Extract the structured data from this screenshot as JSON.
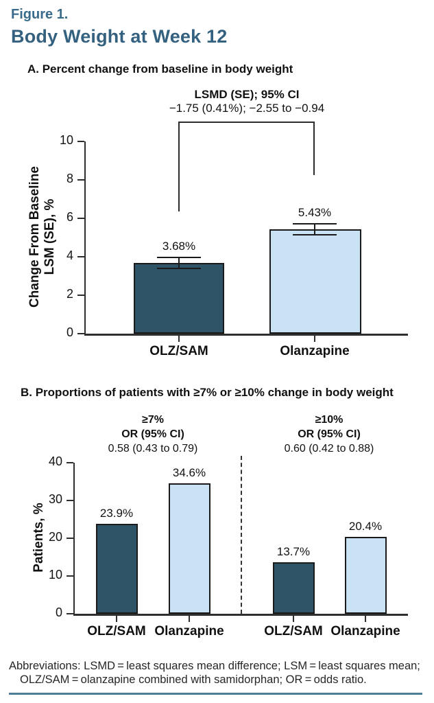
{
  "figure": {
    "label": "Figure 1.",
    "title": "Body Weight at Week 12"
  },
  "colors": {
    "dark_bar": "#2F5468",
    "light_bar": "#C9E2F4",
    "accent": "#3A6B8A",
    "accent_dark": "#33617F",
    "rule": "#4D7D99"
  },
  "panel_a": {
    "heading": "A. Percent change from baseline in body weight",
    "annotation_title": "LSMD (SE); 95% CI",
    "annotation_value": "−1.75 (0.41%); −2.55 to −0.94",
    "y_axis_label_line1": "Change From Baseline",
    "y_axis_label_line2": "LSM (SE), %",
    "y_ticks": [
      "10",
      "8",
      "6",
      "4",
      "2",
      "0"
    ],
    "bars": [
      {
        "label": "OLZ/SAM",
        "value": 3.68,
        "se": 0.32,
        "value_label": "3.68%"
      },
      {
        "label": "Olanzapine",
        "value": 5.43,
        "se": 0.32,
        "value_label": "5.43%"
      }
    ]
  },
  "panel_b": {
    "heading": "B. Proportions of patients with ≥7% or ≥10% change in body weight",
    "y_axis_label": "Patients, %",
    "y_ticks": [
      "40",
      "30",
      "20",
      "10",
      "0"
    ],
    "groups": [
      {
        "threshold": "≥7%",
        "or_label": "OR (95% CI)",
        "or_value": "0.58 (0.43 to 0.79)",
        "bars": [
          {
            "label": "OLZ/SAM",
            "value": 23.9,
            "se": 0,
            "value_label": "23.9%"
          },
          {
            "label": "Olanzapine",
            "value": 34.6,
            "se": 0,
            "value_label": "34.6%"
          }
        ]
      },
      {
        "threshold": "≥10%",
        "or_label": "OR (95% CI)",
        "or_value": "0.60 (0.42 to 0.88)",
        "bars": [
          {
            "label": "OLZ/SAM",
            "value": 13.7,
            "se": 0,
            "value_label": "13.7%"
          },
          {
            "label": "Olanzapine",
            "value": 20.4,
            "se": 0,
            "value_label": "20.4%"
          }
        ]
      }
    ]
  },
  "footer": {
    "line1": "Abbreviations: LSMD = least squares mean difference; LSM = least squares mean;",
    "line2": "OLZ/SAM = olanzapine combined with samidorphan; OR = odds ratio."
  },
  "chart_data": [
    {
      "type": "bar",
      "title": "A. Percent change from baseline in body weight",
      "categories": [
        "OLZ/SAM",
        "Olanzapine"
      ],
      "values": [
        3.68,
        5.43
      ],
      "error_se": [
        0.32,
        0.32
      ],
      "data_labels": [
        "3.68%",
        "5.43%"
      ],
      "ylabel": "Change From Baseline LSM (SE), %",
      "ylim": [
        0,
        10
      ],
      "yticks": [
        0,
        2,
        4,
        6,
        8,
        10
      ],
      "grid": false,
      "annotation": "LSMD (SE); 95% CI −1.75 (0.41%); −2.55 to −0.94",
      "bar_colors": [
        "#2F5468",
        "#C9E2F4"
      ]
    },
    {
      "type": "bar",
      "title": "B. Proportions of patients with ≥7% or ≥10% change in body weight",
      "categories": [
        "OLZ/SAM",
        "Olanzapine",
        "OLZ/SAM",
        "Olanzapine"
      ],
      "values": [
        23.9,
        34.6,
        13.7,
        20.4
      ],
      "data_labels": [
        "23.9%",
        "34.6%",
        "13.7%",
        "20.4%"
      ],
      "group_annotations": [
        {
          "threshold": "≥7%",
          "or": "OR (95% CI) 0.58 (0.43 to 0.79)"
        },
        {
          "threshold": "≥10%",
          "or": "OR (95% CI) 0.60 (0.42 to 0.88)"
        }
      ],
      "ylabel": "Patients, %",
      "ylim": [
        0,
        40
      ],
      "yticks": [
        0,
        10,
        20,
        30,
        40
      ],
      "grid": false,
      "bar_colors": [
        "#2F5468",
        "#C9E2F4",
        "#2F5468",
        "#C9E2F4"
      ]
    }
  ]
}
